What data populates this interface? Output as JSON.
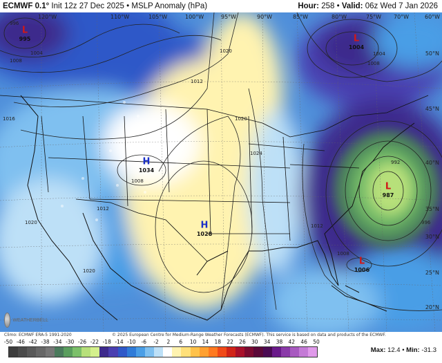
{
  "header": {
    "model": "ECMWF 0.1°",
    "init": "Init 12z 27 Dec 2025",
    "product": "MSLP Anomaly (hPa)",
    "hour_label": "Hour:",
    "hour": "258",
    "valid_label": "Valid:",
    "valid": "06z Wed 7 Jan 2026",
    "separator": "•"
  },
  "longitudes": [
    "120°W",
    "110°W",
    "105°W",
    "100°W",
    "95°W",
    "90°W",
    "85°W",
    "80°W",
    "75°W",
    "70°W",
    "60°W"
  ],
  "latitudes": [
    "50°N",
    "45°N",
    "40°N",
    "35°N",
    "30°N",
    "25°N",
    "20°N"
  ],
  "centers": [
    {
      "type": "L",
      "value": "995",
      "color": "#d01818"
    },
    {
      "type": "L",
      "value": "1004",
      "color": "#d01818"
    },
    {
      "type": "H",
      "value": "1034",
      "color": "#1a2fc8"
    },
    {
      "type": "H",
      "value": "1028",
      "color": "#1a2fc8"
    },
    {
      "type": "L",
      "value": "987",
      "color": "#d01818"
    },
    {
      "type": "L",
      "value": "1006",
      "color": "#d01818"
    }
  ],
  "isobar_labels": [
    "996",
    "1004",
    "1008",
    "1016",
    "1020",
    "1012",
    "1008",
    "1012",
    "1020",
    "1024",
    "1012",
    "1008",
    "992",
    "996",
    "1004",
    "1008",
    "1020",
    "1020"
  ],
  "watermark": "WEATHERBELL",
  "footer": {
    "climo": "Climo: ECMWF ERA-5 1991-2020",
    "copyright": "© 2025 European Centre for Medium-Range Weather Forecasts (ECMWF). This service is based on data and products of the ECMWF."
  },
  "colorbar": {
    "ticks": [
      "-50",
      "-46",
      "-42",
      "-38",
      "-34",
      "-30",
      "-26",
      "-22",
      "-18",
      "-14",
      "-10",
      "-6",
      "-2",
      "2",
      "6",
      "10",
      "14",
      "18",
      "22",
      "26",
      "30",
      "34",
      "38",
      "42",
      "46",
      "50"
    ],
    "colors": [
      "#3d3d3d",
      "#4b4b4b",
      "#595959",
      "#676767",
      "#767676",
      "#4a7a5c",
      "#5a9e5e",
      "#7cc06a",
      "#b7e07a",
      "#d4f08c",
      "#3e2a8c",
      "#4a3fb0",
      "#2f58c8",
      "#2f7bd8",
      "#4a9ee6",
      "#7fc0f0",
      "#bde0f7",
      "#ffffff",
      "#fff3b0",
      "#ffe07a",
      "#ffc24a",
      "#ffa030",
      "#ff7a20",
      "#f04a18",
      "#d02418",
      "#a8102a",
      "#7a0a30",
      "#5a0838",
      "#4a0a52",
      "#6a1a8a",
      "#8a3aa8",
      "#a85ac0",
      "#c47ad6",
      "#e09aea"
    ],
    "max_label": "Max:",
    "max": "12.4",
    "min_label": "Min:",
    "min": "-31.3"
  }
}
